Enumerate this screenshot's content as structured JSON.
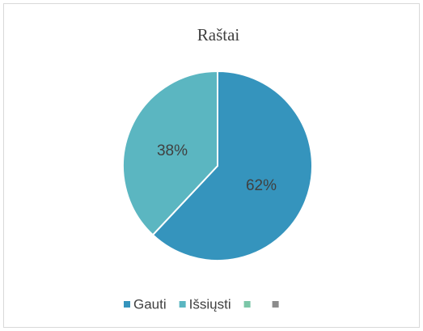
{
  "chart_data": {
    "type": "pie",
    "title": "Raštai",
    "categories": [
      "Gauti",
      "Išsiųsti",
      null,
      null
    ],
    "values": [
      62,
      38,
      0,
      0
    ],
    "value_labels": [
      "62%",
      "38%",
      null,
      null
    ],
    "colors": [
      "#3594bd",
      "#5bb6c1",
      "#7cc6a8",
      "#8c8c8c"
    ],
    "legend": "bottom"
  }
}
